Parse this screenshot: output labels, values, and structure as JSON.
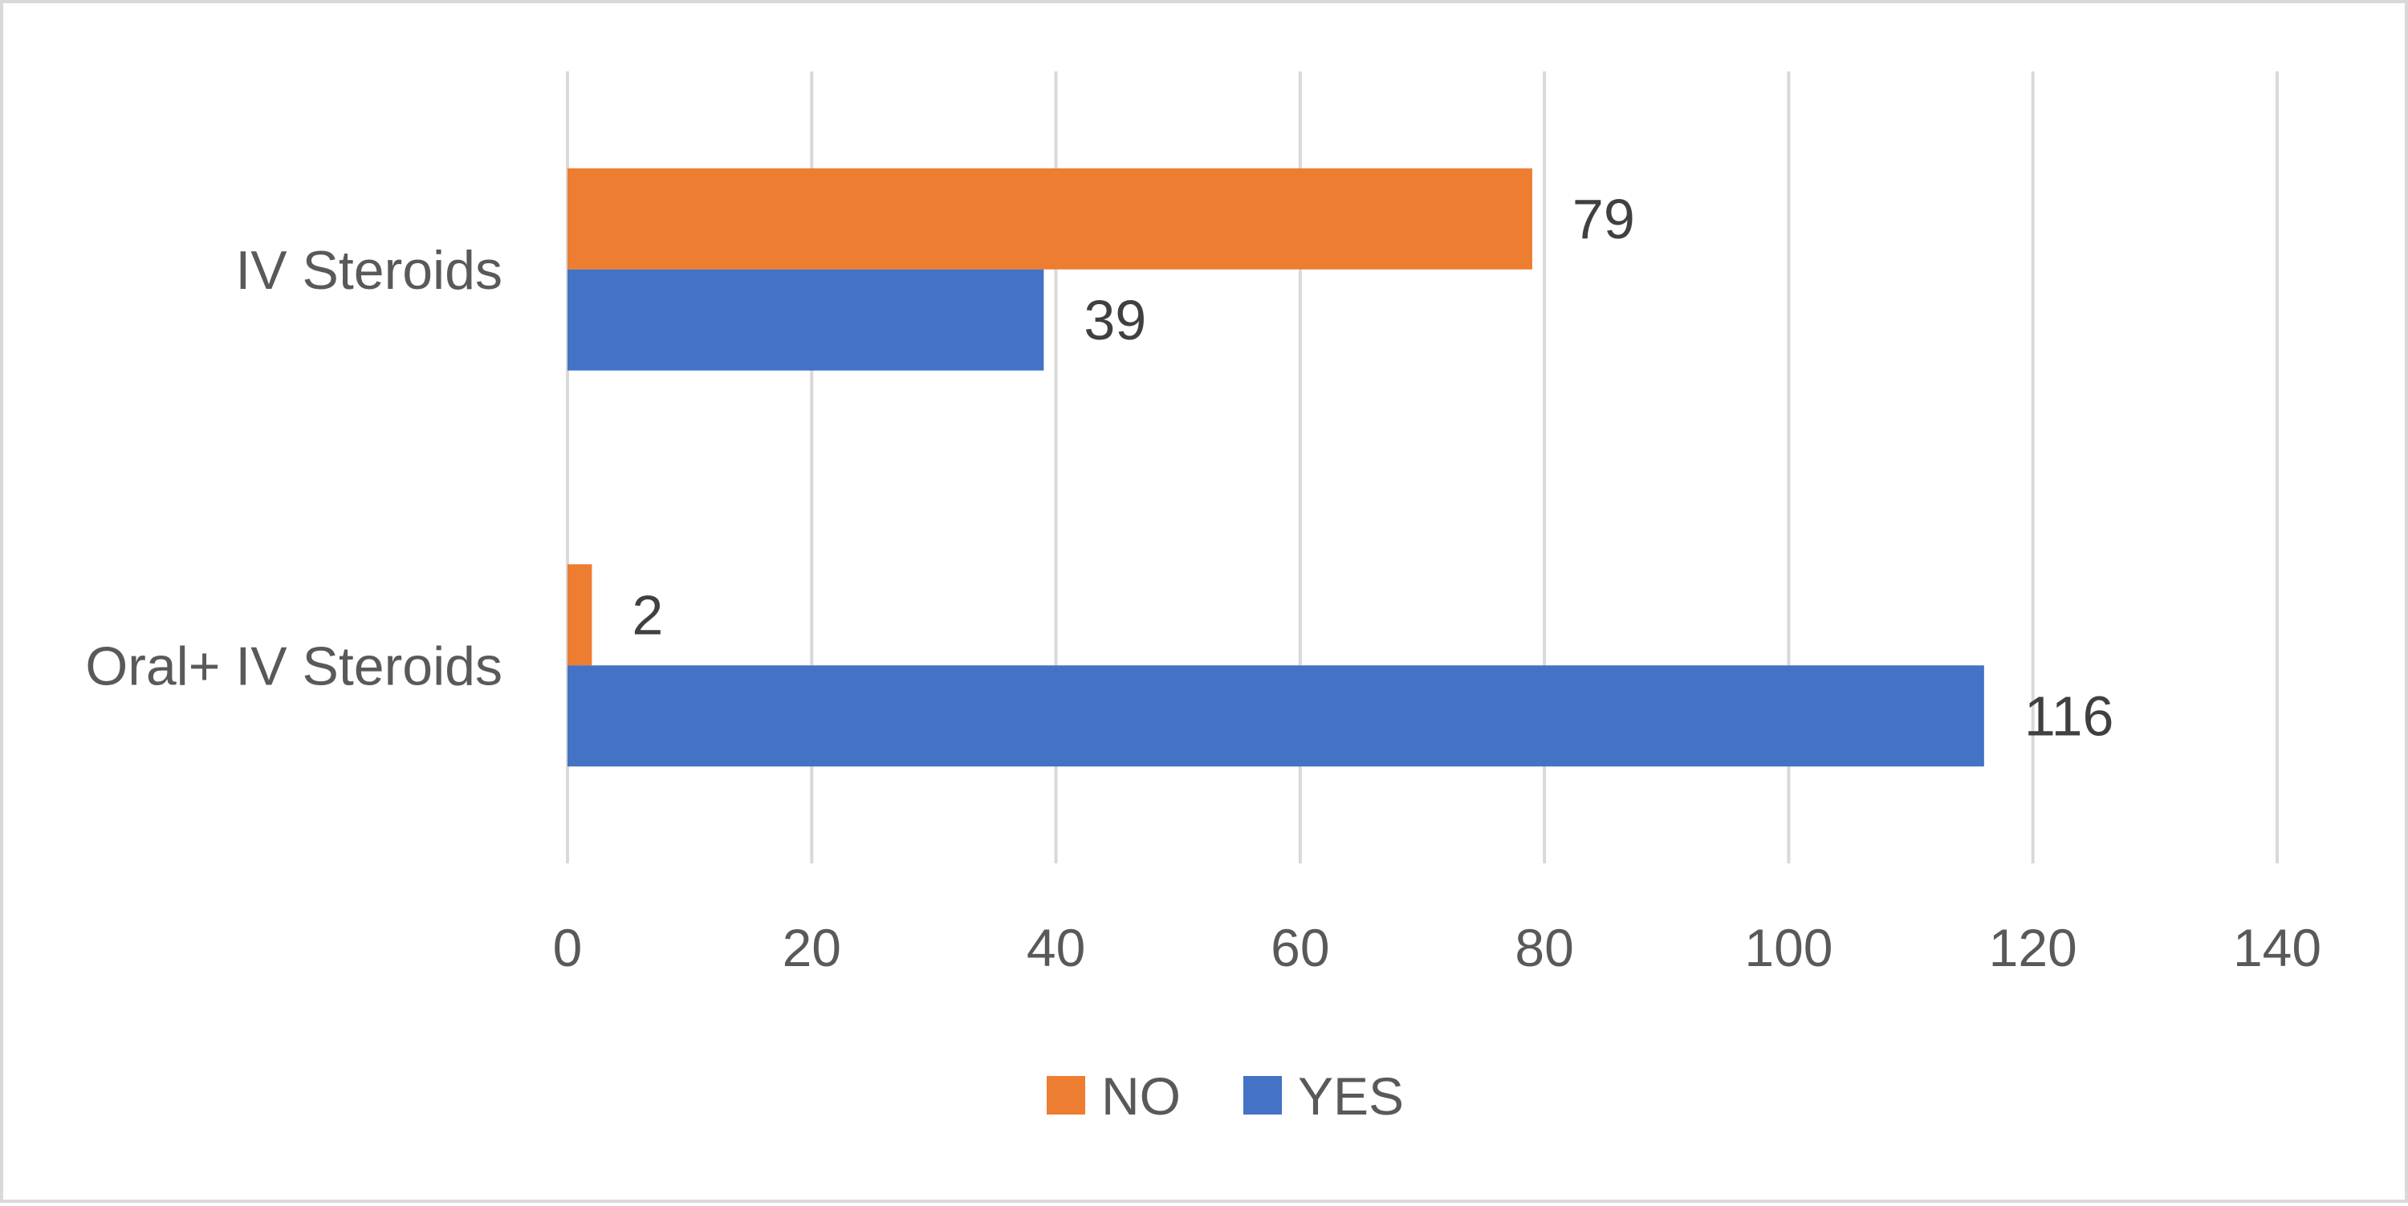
{
  "chart_data": {
    "type": "bar",
    "orientation": "horizontal",
    "title": "",
    "xlabel": "",
    "ylabel": "",
    "categories": [
      "IV Steroids",
      "Oral+ IV Steroids"
    ],
    "series": [
      {
        "name": "NO",
        "color": "#ED7D31",
        "values": [
          79,
          2
        ]
      },
      {
        "name": "YES",
        "color": "#4472C4",
        "values": [
          39,
          116
        ]
      }
    ],
    "xlim": [
      0,
      140
    ],
    "xticks": [
      0,
      20,
      40,
      60,
      80,
      100,
      120,
      140
    ],
    "grid": "vertical",
    "legend_position": "bottom",
    "data_labels": true
  }
}
